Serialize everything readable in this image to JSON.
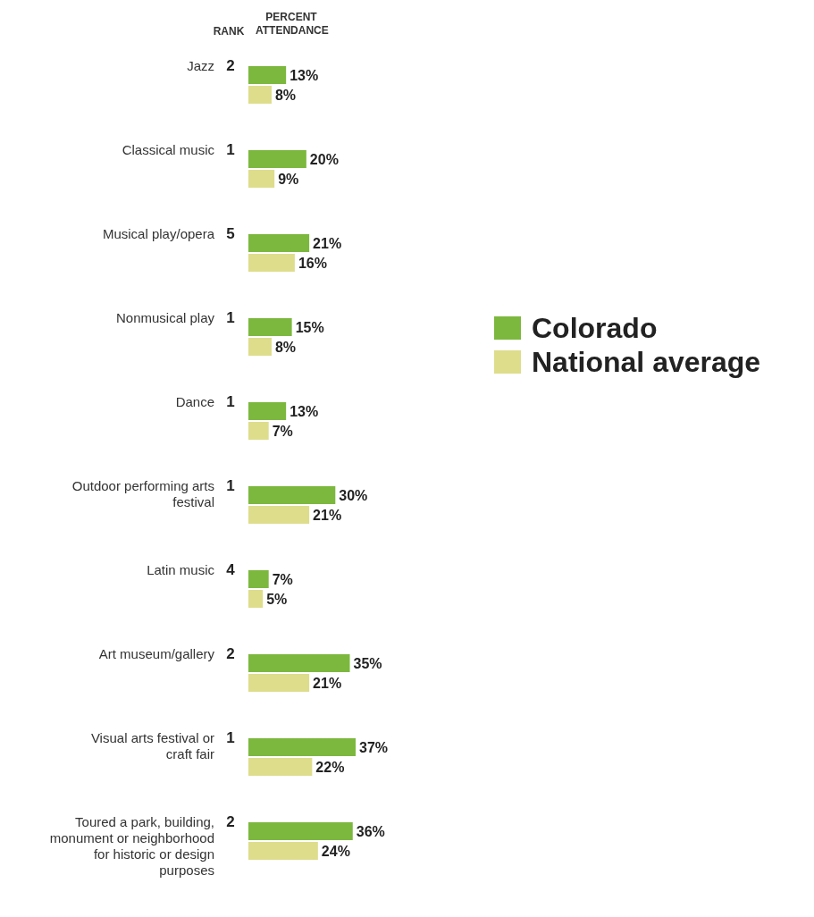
{
  "chart_data": {
    "type": "bar",
    "orientation": "horizontal",
    "xlabel": "PERCENT ATTENDANCE",
    "categories": [
      "Jazz",
      "Classical music",
      "Musical play/opera",
      "Nonmusical play",
      "Dance",
      "Outdoor performing arts festival",
      "Latin music",
      "Art museum/gallery",
      "Visual arts festival or craft fair",
      "Toured a park, building, monument or neighborhood for historic or design purposes"
    ],
    "series": [
      {
        "name": "Colorado",
        "color": "#7cb83e",
        "values": [
          13,
          20,
          21,
          15,
          13,
          30,
          7,
          35,
          37,
          36
        ],
        "value_labels": [
          "13%",
          "20%",
          "21%",
          "15%",
          "13%",
          "30%",
          "7%",
          "35%",
          "37%",
          "36%"
        ]
      },
      {
        "name": "National average",
        "color": "#dedd8c",
        "values": [
          8,
          9,
          16,
          8,
          7,
          21,
          5,
          21,
          22,
          24
        ],
        "value_labels": [
          "8%",
          "9%",
          "16%",
          "8%",
          "7%",
          "21%",
          "5%",
          "21%",
          "22%",
          "24%"
        ]
      }
    ],
    "annotations": [
      "RANK",
      "2",
      "1",
      "5",
      "1",
      "1",
      "1",
      "4",
      "2",
      "1",
      "2"
    ],
    "legend": "right"
  }
}
